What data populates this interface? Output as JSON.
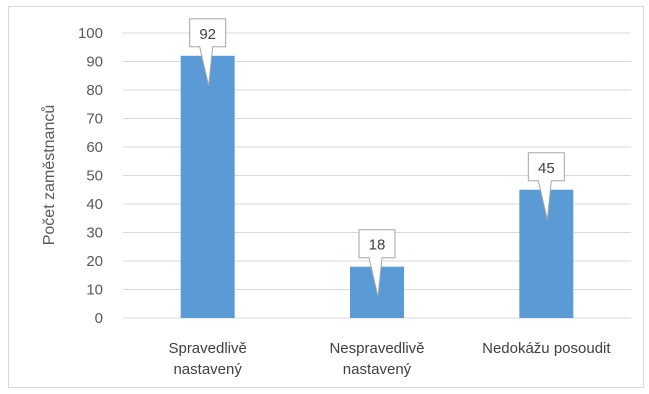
{
  "chart_data": {
    "type": "bar",
    "categories": [
      [
        "Spravedlivě",
        "nastavený"
      ],
      [
        "Nespravedlivě",
        "nastavený"
      ],
      [
        "Nedokážu posoudit"
      ]
    ],
    "values": [
      92,
      18,
      45
    ],
    "ylabel": "Počet zaměstnanců",
    "xlabel": "",
    "ylim": [
      0,
      100
    ],
    "ytick_step": 10,
    "yticks": [
      "0",
      "10",
      "20",
      "30",
      "40",
      "50",
      "60",
      "70",
      "80",
      "90",
      "100"
    ],
    "data_labels": [
      "92",
      "18",
      "45"
    ],
    "grid": true,
    "legend": "none",
    "colors": {
      "bar": "#5b9bd5",
      "grid": "#d9d9d9",
      "callout_border": "#a6a6a6"
    }
  }
}
